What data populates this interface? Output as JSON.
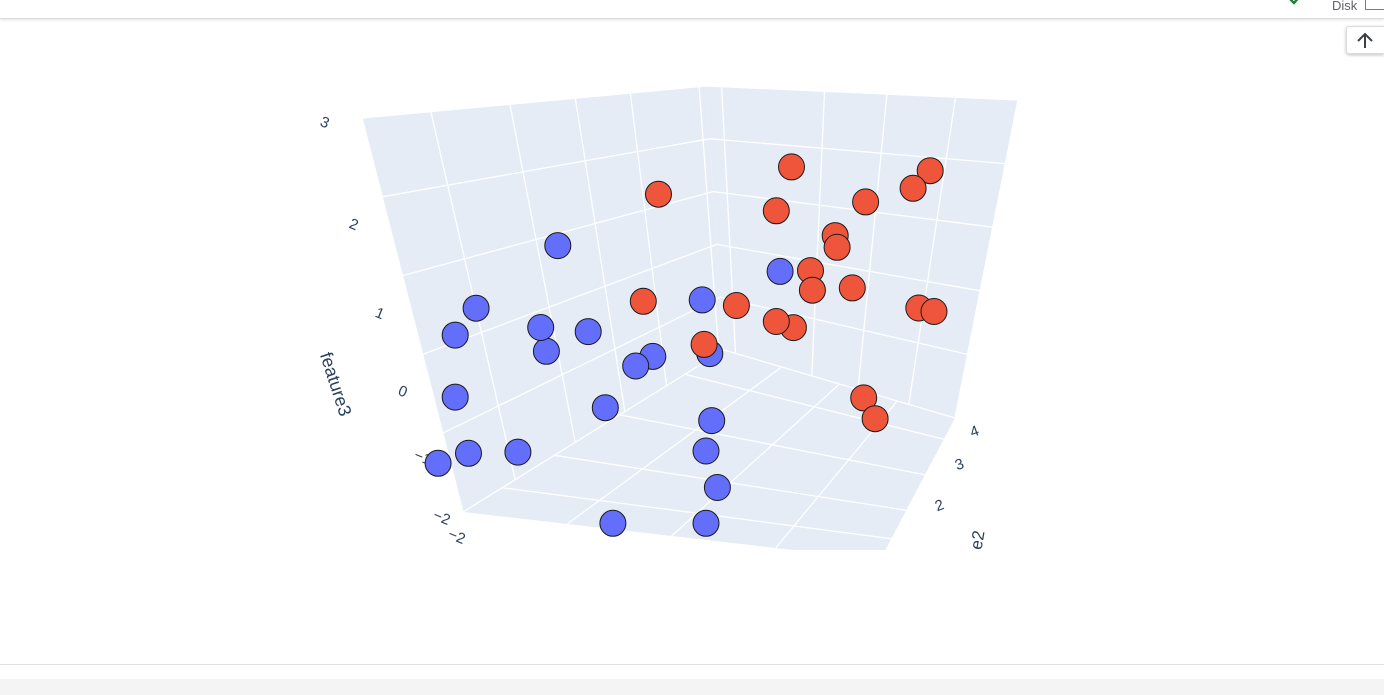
{
  "status": {
    "disk_label": "Disk"
  },
  "colors": {
    "class_0": "#636efa",
    "class_1": "#ef553b",
    "pane": "#e5ecf6",
    "grid": "#ffffff",
    "text": "#2a3f5f"
  },
  "icons": {
    "status_check": "check-icon",
    "scroll_top": "arrow-up-icon"
  },
  "chart_data": {
    "type": "scatter3d",
    "zlabel": "feature3",
    "ylabel_partial": "e2",
    "z_ticks": [
      "3",
      "2",
      "1",
      "0",
      "−1",
      "−2"
    ],
    "y_ticks": [
      "4",
      "3",
      "2"
    ],
    "x_ticks_partial": [
      "−2"
    ],
    "zlim": [
      -2,
      3
    ],
    "grid": true,
    "series": [
      {
        "color": "#636efa",
        "points": [
          [
            -1.2,
            1.1,
            1.6
          ],
          [
            -1.7,
            0.2,
            0.9
          ],
          [
            -1.8,
            -0.1,
            0.6
          ],
          [
            -1.1,
            0.4,
            0.7
          ],
          [
            -0.8,
            0.9,
            0.6
          ],
          [
            -1.4,
            1.3,
            0.2
          ],
          [
            -2.0,
            0.4,
            -0.3
          ],
          [
            -1.5,
            0.8,
            -1.0
          ],
          [
            -1.9,
            -0.3,
            -1.0
          ],
          [
            -1.7,
            0.0,
            -0.9
          ],
          [
            -0.9,
            1.6,
            -0.5
          ],
          [
            -0.7,
            1.9,
            0.0
          ],
          [
            -0.6,
            2.1,
            0.1
          ],
          [
            -0.2,
            2.6,
            0.1
          ],
          [
            -0.1,
            2.4,
            -0.7
          ],
          [
            0.0,
            2.0,
            -1.0
          ],
          [
            0.2,
            1.8,
            -1.4
          ],
          [
            0.2,
            1.5,
            -1.8
          ],
          [
            -0.9,
            1.8,
            -2.0
          ],
          [
            0.3,
            3.2,
            1.1
          ],
          [
            -0.4,
            2.9,
            0.7
          ]
        ]
      },
      {
        "color": "#ef553b",
        "points": [
          [
            2.6,
            1.4,
            3.0
          ],
          [
            2.5,
            1.2,
            2.8
          ],
          [
            0.7,
            2.5,
            2.6
          ],
          [
            -0.3,
            1.5,
            2.3
          ],
          [
            0.5,
            2.6,
            2.0
          ],
          [
            1.2,
            3.2,
            2.1
          ],
          [
            1.0,
            2.9,
            1.7
          ],
          [
            1.1,
            2.7,
            1.6
          ],
          [
            0.7,
            3.0,
            1.2
          ],
          [
            0.8,
            2.8,
            1.0
          ],
          [
            2.4,
            1.6,
            1.2
          ],
          [
            2.6,
            1.5,
            1.2
          ],
          [
            -0.5,
            1.6,
            0.9
          ],
          [
            0.0,
            2.8,
            0.7
          ],
          [
            0.5,
            2.6,
            0.6
          ],
          [
            0.6,
            2.8,
            0.5
          ],
          [
            -0.1,
            2.2,
            0.3
          ],
          [
            0.9,
            3.6,
            0.9
          ],
          [
            1.5,
            2.4,
            -0.2
          ],
          [
            1.7,
            2.2,
            -0.4
          ]
        ]
      }
    ]
  }
}
